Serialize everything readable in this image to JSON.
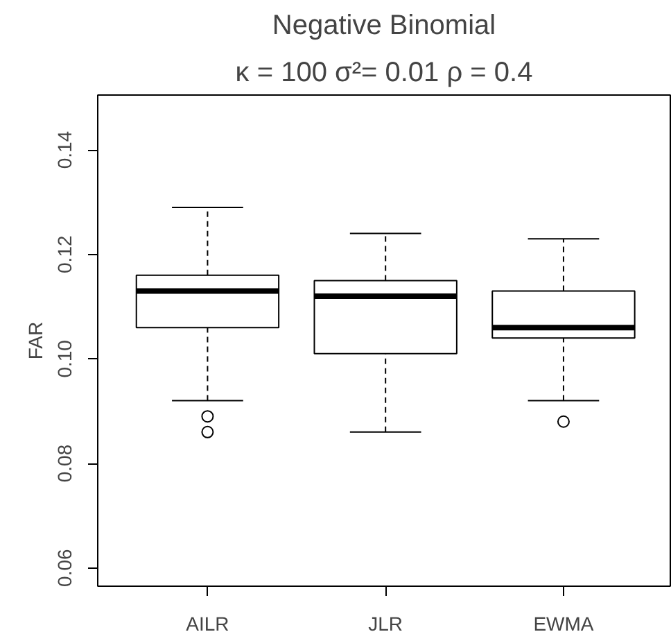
{
  "chart_data": {
    "type": "box",
    "title": "Negative Binomial",
    "subtitle": "κ = 100 σ²= 0.01 ρ = 0.4",
    "ylabel": "FAR",
    "categories": [
      "AILR",
      "JLR",
      "EWMA"
    ],
    "boxes": [
      {
        "low": 0.092,
        "q1": 0.106,
        "median": 0.113,
        "q3": 0.116,
        "high": 0.129,
        "outliers": [
          0.089,
          0.086
        ]
      },
      {
        "low": 0.086,
        "q1": 0.101,
        "median": 0.112,
        "q3": 0.115,
        "high": 0.124
      },
      {
        "low": 0.092,
        "q1": 0.104,
        "median": 0.106,
        "q3": 0.113,
        "high": 0.123,
        "outliers": [
          0.088
        ]
      }
    ],
    "ylim": [
      0.0565,
      0.1505
    ],
    "yticks": [
      0.06,
      0.08,
      {
        "value": 0.1,
        "label": "0.10"
      },
      0.12,
      0.14
    ]
  }
}
